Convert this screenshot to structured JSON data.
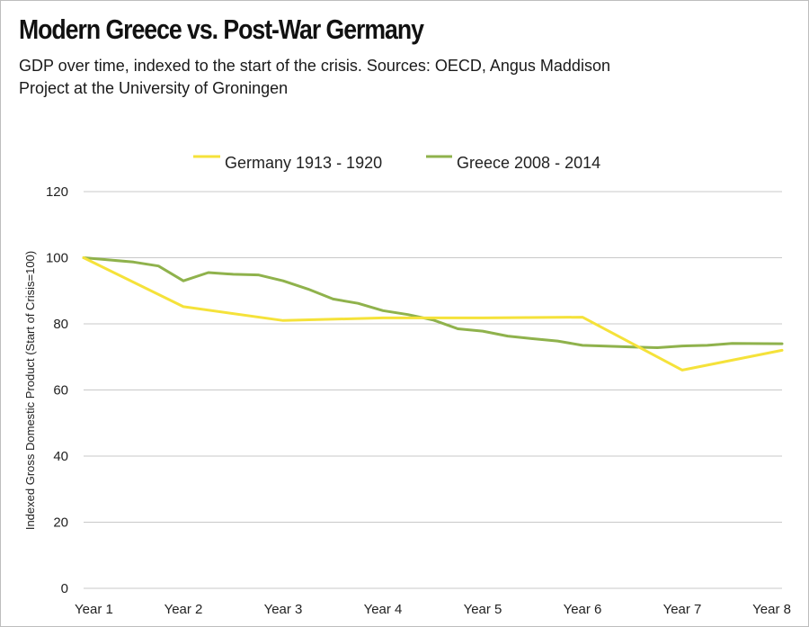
{
  "chart_data": {
    "type": "line",
    "title": "Modern Greece vs. Post-War Germany",
    "subtitle": "GDP over time, indexed to the start of the crisis. Sources: OECD, Angus Maddison Project at the University of Groningen",
    "ylabel": "Indexed Gross Domestic Product (Start of Crisis=100)",
    "xlabel": "",
    "ylim": [
      0,
      120
    ],
    "yticks": [
      0,
      20,
      40,
      60,
      80,
      100,
      120
    ],
    "xlim": [
      1,
      8
    ],
    "xtick_labels": [
      "Year 1",
      "Year 2",
      "Year 3",
      "Year 4",
      "Year 5",
      "Year 6",
      "Year 7",
      "Year 8"
    ],
    "grid": true,
    "legend_position": "top-center",
    "series": [
      {
        "name": "Germany 1913 - 1920",
        "color": "#f5e23a",
        "points": [
          {
            "x": 1,
            "y": 100
          },
          {
            "x": 2,
            "y": 85.2
          },
          {
            "x": 3,
            "y": 81
          },
          {
            "x": 4,
            "y": 81.8
          },
          {
            "x": 5,
            "y": 81.8
          },
          {
            "x": 6,
            "y": 82
          },
          {
            "x": 7,
            "y": 66
          },
          {
            "x": 8,
            "y": 72
          }
        ]
      },
      {
        "name": "Greece 2008 - 2014",
        "color": "#8fb24c",
        "points": [
          {
            "x": 1,
            "y": 100
          },
          {
            "x": 1.5,
            "y": 98.7
          },
          {
            "x": 1.75,
            "y": 97.5
          },
          {
            "x": 2,
            "y": 93
          },
          {
            "x": 2.25,
            "y": 95.5
          },
          {
            "x": 2.5,
            "y": 95
          },
          {
            "x": 2.75,
            "y": 94.8
          },
          {
            "x": 3,
            "y": 93
          },
          {
            "x": 3.25,
            "y": 90.5
          },
          {
            "x": 3.5,
            "y": 87.5
          },
          {
            "x": 3.75,
            "y": 86.2
          },
          {
            "x": 4,
            "y": 84
          },
          {
            "x": 4.25,
            "y": 82.8
          },
          {
            "x": 4.5,
            "y": 81.2
          },
          {
            "x": 4.75,
            "y": 78.5
          },
          {
            "x": 5,
            "y": 77.8
          },
          {
            "x": 5.25,
            "y": 76.3
          },
          {
            "x": 5.5,
            "y": 75.5
          },
          {
            "x": 5.75,
            "y": 74.8
          },
          {
            "x": 6,
            "y": 73.5
          },
          {
            "x": 6.5,
            "y": 73
          },
          {
            "x": 6.75,
            "y": 72.8
          },
          {
            "x": 7,
            "y": 73.3
          },
          {
            "x": 7.25,
            "y": 73.5
          },
          {
            "x": 7.5,
            "y": 74.1
          },
          {
            "x": 8,
            "y": 74
          }
        ]
      }
    ]
  }
}
